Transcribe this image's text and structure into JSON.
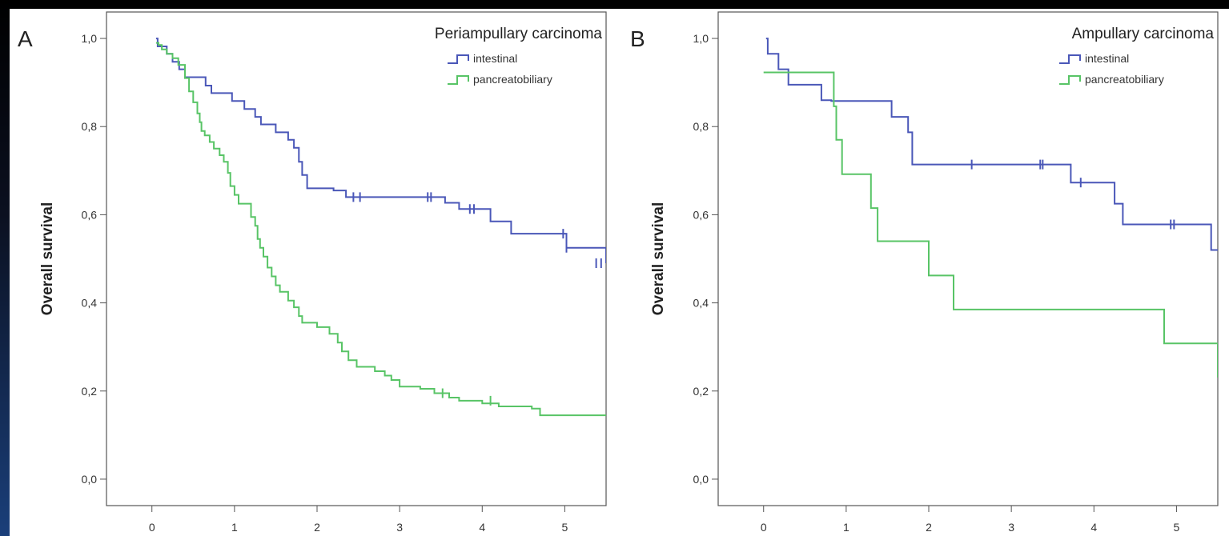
{
  "chart_data": [
    {
      "type": "line",
      "panel": "A",
      "title": "Periampullary carcinoma",
      "ylabel": "Overall survival",
      "xlabel": "",
      "xlim": [
        -0.55,
        5.5
      ],
      "ylim": [
        -0.06,
        1.06
      ],
      "xticks": [
        "0",
        "1",
        "2",
        "3",
        "4",
        "5"
      ],
      "yticks": [
        "0,0",
        "0,2",
        "0,4",
        "0,6",
        "0,8",
        "1,0"
      ],
      "legend_position": "top-right",
      "series": [
        {
          "name": "intestinal",
          "color": "#4a57b8",
          "x": [
            0.05,
            0.07,
            0.18,
            0.25,
            0.33,
            0.4,
            0.5,
            0.65,
            0.72,
            0.8,
            0.97,
            1.04,
            1.12,
            1.25,
            1.32,
            1.45,
            1.5,
            1.6,
            1.65,
            1.72,
            1.78,
            1.82,
            1.88,
            1.98,
            2.12,
            2.2,
            2.35,
            2.55,
            3.3,
            3.55,
            3.72,
            3.92,
            4.1,
            4.35,
            4.72,
            5.02,
            5.18,
            5.5
          ],
          "y": [
            1.0,
            0.982,
            0.965,
            0.947,
            0.93,
            0.912,
            0.912,
            0.893,
            0.876,
            0.876,
            0.858,
            0.858,
            0.84,
            0.822,
            0.805,
            0.805,
            0.787,
            0.787,
            0.77,
            0.752,
            0.72,
            0.69,
            0.66,
            0.66,
            0.66,
            0.655,
            0.64,
            0.64,
            0.64,
            0.627,
            0.613,
            0.613,
            0.585,
            0.557,
            0.557,
            0.525,
            0.525,
            0.49
          ],
          "censored": [
            [
              2.44,
              0.64
            ],
            [
              2.52,
              0.64
            ],
            [
              3.34,
              0.64
            ],
            [
              3.38,
              0.64
            ],
            [
              3.85,
              0.613
            ],
            [
              3.9,
              0.613
            ],
            [
              4.98,
              0.557
            ],
            [
              5.02,
              0.525
            ],
            [
              5.38,
              0.49
            ],
            [
              5.44,
              0.49
            ]
          ]
        },
        {
          "name": "pancreatobiliary",
          "color": "#58c466",
          "x": [
            0.05,
            0.08,
            0.12,
            0.18,
            0.25,
            0.32,
            0.4,
            0.45,
            0.5,
            0.55,
            0.58,
            0.6,
            0.64,
            0.7,
            0.75,
            0.82,
            0.87,
            0.92,
            0.95,
            1.0,
            1.05,
            1.1,
            1.2,
            1.25,
            1.28,
            1.31,
            1.35,
            1.4,
            1.45,
            1.5,
            1.55,
            1.65,
            1.72,
            1.78,
            1.82,
            2.0,
            2.15,
            2.25,
            2.3,
            2.38,
            2.48,
            2.7,
            2.82,
            2.9,
            3.0,
            3.25,
            3.42,
            3.6,
            3.72,
            4.0,
            4.2,
            4.6,
            4.7,
            5.5
          ],
          "y": [
            0.99,
            0.985,
            0.975,
            0.965,
            0.955,
            0.94,
            0.91,
            0.88,
            0.855,
            0.83,
            0.81,
            0.79,
            0.78,
            0.765,
            0.75,
            0.735,
            0.72,
            0.695,
            0.665,
            0.645,
            0.625,
            0.625,
            0.595,
            0.575,
            0.545,
            0.525,
            0.505,
            0.48,
            0.46,
            0.44,
            0.425,
            0.405,
            0.39,
            0.37,
            0.355,
            0.345,
            0.33,
            0.31,
            0.29,
            0.27,
            0.255,
            0.245,
            0.235,
            0.225,
            0.21,
            0.205,
            0.195,
            0.185,
            0.178,
            0.172,
            0.165,
            0.16,
            0.145,
            0.145
          ],
          "censored": [
            [
              3.52,
              0.195
            ],
            [
              4.1,
              0.178
            ]
          ]
        }
      ]
    },
    {
      "type": "line",
      "panel": "B",
      "title": "Ampullary carcinoma",
      "ylabel": "Overall survival",
      "xlabel": "",
      "xlim": [
        -0.55,
        5.5
      ],
      "ylim": [
        -0.06,
        1.06
      ],
      "xticks": [
        "0",
        "1",
        "2",
        "3",
        "4",
        "5"
      ],
      "yticks": [
        "0,0",
        "0,2",
        "0,4",
        "0,6",
        "0,8",
        "1,0"
      ],
      "legend_position": "top-right",
      "series": [
        {
          "name": "intestinal",
          "color": "#4a57b8",
          "x": [
            0.03,
            0.05,
            0.18,
            0.3,
            0.7,
            0.82,
            1.3,
            1.55,
            1.75,
            1.8,
            2.4,
            3.55,
            3.72,
            3.92,
            4.25,
            4.35,
            5.42,
            5.5
          ],
          "y": [
            1.0,
            0.965,
            0.93,
            0.895,
            0.86,
            0.858,
            0.858,
            0.822,
            0.787,
            0.714,
            0.714,
            0.714,
            0.673,
            0.673,
            0.625,
            0.578,
            0.52,
            0.52
          ],
          "censored": [
            [
              2.52,
              0.714
            ],
            [
              3.35,
              0.714
            ],
            [
              3.38,
              0.714
            ],
            [
              3.84,
              0.673
            ],
            [
              4.93,
              0.578
            ],
            [
              4.97,
              0.578
            ]
          ]
        },
        {
          "name": "pancreatobiliary",
          "color": "#58c466",
          "x": [
            0.0,
            0.78,
            0.85,
            0.88,
            0.95,
            1.3,
            1.38,
            2.0,
            2.3,
            4.85,
            5.5
          ],
          "y": [
            0.923,
            0.923,
            0.846,
            0.77,
            0.692,
            0.615,
            0.54,
            0.462,
            0.385,
            0.308,
            0.231
          ],
          "censored": []
        }
      ]
    }
  ]
}
